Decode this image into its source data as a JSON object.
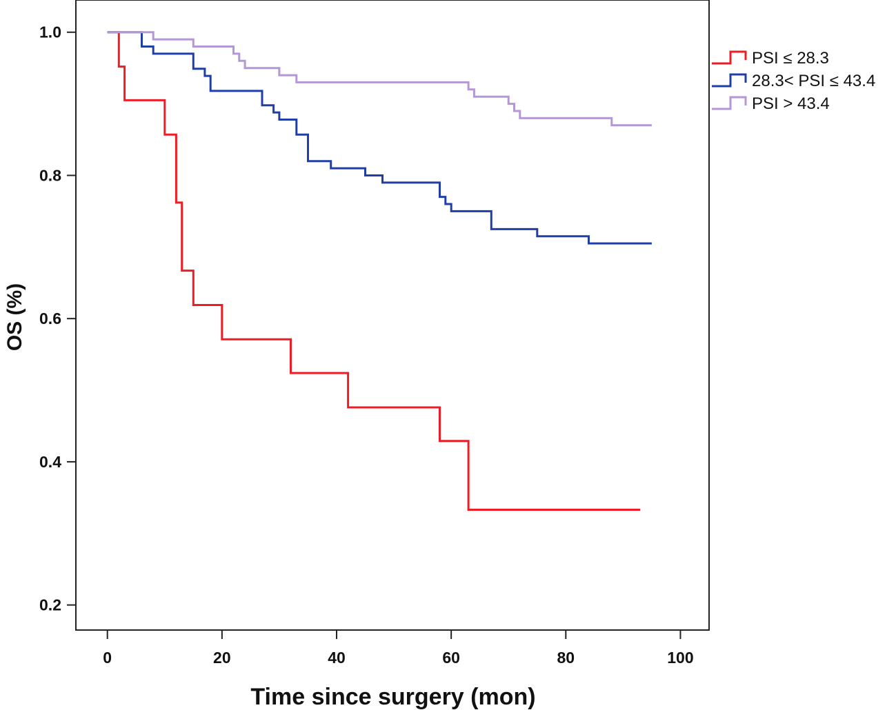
{
  "chart_data": {
    "type": "line",
    "subtype": "kaplan-meier",
    "title": "",
    "xlabel": "Time since surgery (mon)",
    "ylabel": "OS (%)",
    "xlim": [
      -5.5,
      105
    ],
    "ylim": [
      0.165,
      1.045
    ],
    "x_ticks": [
      0,
      20,
      40,
      60,
      80,
      100
    ],
    "y_ticks": [
      0.2,
      0.4,
      0.6,
      0.8,
      1.0
    ],
    "x_tick_labels": [
      "0",
      "20",
      "40",
      "60",
      "80",
      "100"
    ],
    "y_tick_labels": [
      "0.2",
      "0.4",
      "0.6",
      "0.8",
      "1.0"
    ],
    "grid": false,
    "legend_position": "right",
    "series": [
      {
        "name": "PSI ≤ 28.3",
        "color": "#ee1c25",
        "x": [
          0,
          2,
          3,
          10,
          12,
          13,
          15,
          20,
          32,
          42,
          58,
          63,
          93
        ],
        "y": [
          1.0,
          0.952,
          0.905,
          0.857,
          0.762,
          0.667,
          0.619,
          0.571,
          0.524,
          0.476,
          0.429,
          0.333,
          0.333
        ]
      },
      {
        "name": "28.3< PSI ≤ 43.4",
        "color": "#1f3ea8",
        "x": [
          0,
          6,
          8,
          15,
          17,
          18,
          27,
          29,
          30,
          33,
          35,
          39,
          45,
          48,
          58,
          59,
          60,
          67,
          75,
          84,
          95
        ],
        "y": [
          1.0,
          0.98,
          0.97,
          0.949,
          0.939,
          0.918,
          0.898,
          0.888,
          0.878,
          0.857,
          0.82,
          0.81,
          0.8,
          0.79,
          0.77,
          0.76,
          0.75,
          0.725,
          0.715,
          0.705,
          0.705
        ]
      },
      {
        "name": "PSI > 43.4",
        "color": "#b497d6",
        "x": [
          0,
          8,
          15,
          22,
          23,
          24,
          30,
          33,
          59,
          63,
          64,
          70,
          71,
          72,
          88,
          95
        ],
        "y": [
          1.0,
          0.99,
          0.98,
          0.97,
          0.96,
          0.95,
          0.94,
          0.93,
          0.93,
          0.92,
          0.91,
          0.9,
          0.89,
          0.88,
          0.87,
          0.87
        ]
      }
    ]
  }
}
